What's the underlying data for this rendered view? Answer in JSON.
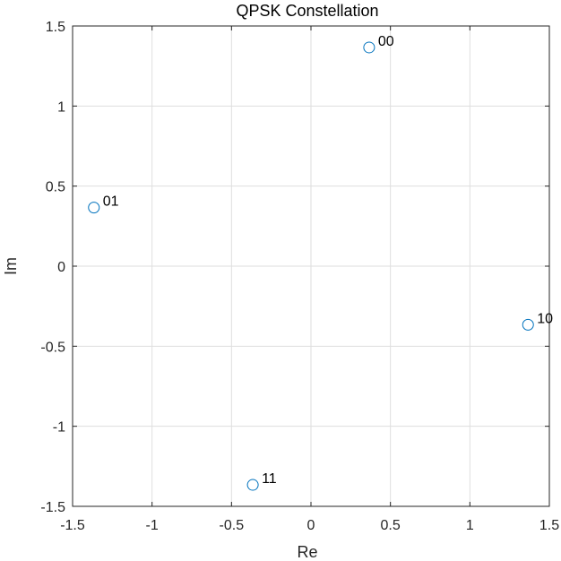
{
  "chart_data": {
    "type": "scatter",
    "title": "QPSK Constellation",
    "xlabel": "Re",
    "ylabel": "Im",
    "xlim": [
      -1.5,
      1.5
    ],
    "ylim": [
      -1.5,
      1.5
    ],
    "xticks": [
      -1.5,
      -1,
      -0.5,
      0,
      0.5,
      1,
      1.5
    ],
    "yticks": [
      -1.5,
      -1,
      -0.5,
      0,
      0.5,
      1,
      1.5
    ],
    "xtick_labels": [
      "-1.5",
      "-1",
      "-0.5",
      "0",
      "0.5",
      "1",
      "1.5"
    ],
    "ytick_labels": [
      "-1.5",
      "-1",
      "-0.5",
      "0",
      "0.5",
      "1",
      "1.5"
    ],
    "grid": true,
    "marker": "open-circle",
    "marker_color": "#0072bd",
    "points": [
      {
        "x": 0.366,
        "y": 1.366,
        "label": "00"
      },
      {
        "x": -1.366,
        "y": 0.366,
        "label": "01"
      },
      {
        "x": 1.366,
        "y": -0.366,
        "label": "10"
      },
      {
        "x": -0.366,
        "y": -1.366,
        "label": "11"
      }
    ]
  }
}
